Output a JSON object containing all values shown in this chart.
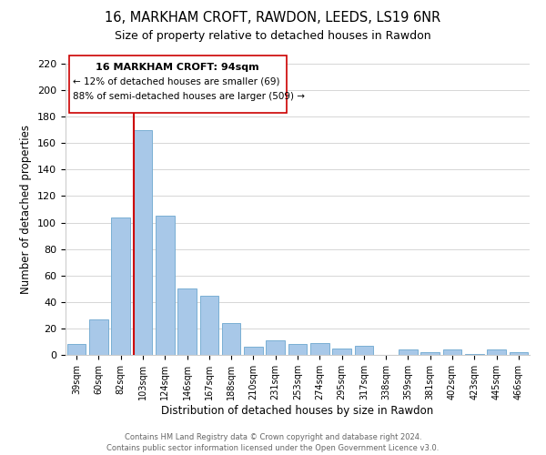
{
  "title": "16, MARKHAM CROFT, RAWDON, LEEDS, LS19 6NR",
  "subtitle": "Size of property relative to detached houses in Rawdon",
  "xlabel": "Distribution of detached houses by size in Rawdon",
  "ylabel": "Number of detached properties",
  "bar_labels": [
    "39sqm",
    "60sqm",
    "82sqm",
    "103sqm",
    "124sqm",
    "146sqm",
    "167sqm",
    "188sqm",
    "210sqm",
    "231sqm",
    "253sqm",
    "274sqm",
    "295sqm",
    "317sqm",
    "338sqm",
    "359sqm",
    "381sqm",
    "402sqm",
    "423sqm",
    "445sqm",
    "466sqm"
  ],
  "bar_heights": [
    8,
    27,
    104,
    170,
    105,
    50,
    45,
    24,
    6,
    11,
    8,
    9,
    5,
    7,
    0,
    4,
    2,
    4,
    1,
    4,
    2
  ],
  "ylim": [
    0,
    220
  ],
  "yticks": [
    0,
    20,
    40,
    60,
    80,
    100,
    120,
    140,
    160,
    180,
    200,
    220
  ],
  "bar_color": "#a8c8e8",
  "bar_edge_color": "#7aafd4",
  "vline_color": "#cc0000",
  "annotation_title": "16 MARKHAM CROFT: 94sqm",
  "annotation_line1": "← 12% of detached houses are smaller (69)",
  "annotation_line2": "88% of semi-detached houses are larger (509) →",
  "footer1": "Contains HM Land Registry data © Crown copyright and database right 2024.",
  "footer2": "Contains public sector information licensed under the Open Government Licence v3.0.",
  "fig_bg": "#ffffff",
  "ax_bg": "#ffffff"
}
